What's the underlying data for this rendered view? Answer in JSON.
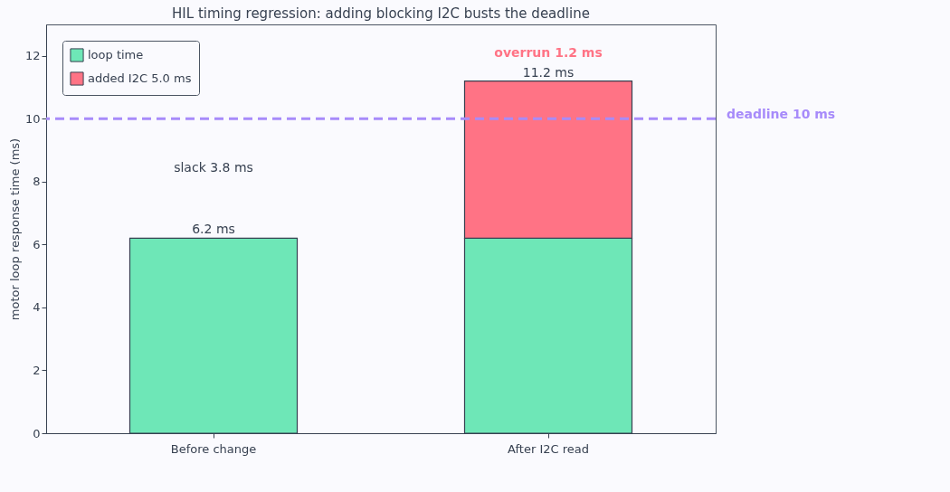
{
  "chart_data": {
    "type": "bar",
    "title": "HIL timing regression: adding blocking I2C busts the deadline",
    "ylabel": "motor loop response time (ms)",
    "categories": [
      "Before change",
      "After I2C read"
    ],
    "stacked": true,
    "series": [
      {
        "name": "loop time",
        "color": "#6ee7b7",
        "values": [
          6.2,
          6.2
        ]
      },
      {
        "name": "added I2C 5.0 ms",
        "color": "#ff7385",
        "values": [
          null,
          5.0
        ]
      }
    ],
    "totals": [
      "6.2 ms",
      "11.2 ms"
    ],
    "ylim": [
      0,
      13
    ],
    "yticks": [
      0,
      2,
      4,
      6,
      8,
      10,
      12
    ],
    "grid": false,
    "legend": "top left",
    "ref_lines": [
      {
        "axis": "y",
        "value": 10,
        "label": "deadline 10 ms",
        "color": "#a78bfa",
        "line_style": "dashed"
      }
    ],
    "annotations": [
      "slack 3.8 ms",
      {
        "text": "overrun 1.2 ms",
        "x": "After I2C read",
        "y": 11.2
      }
    ]
  }
}
